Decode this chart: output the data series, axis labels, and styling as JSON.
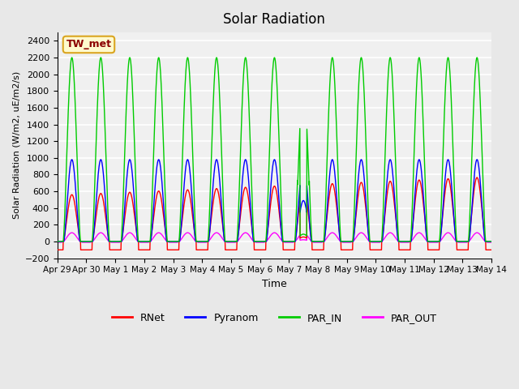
{
  "title": "Solar Radiation",
  "ylabel": "Solar Radiation (W/m2, uE/m2/s)",
  "xlabel": "Time",
  "annotation": "TW_met",
  "annotation_color": "#8B0000",
  "annotation_bg": "#FFFACD",
  "annotation_border": "#DAA520",
  "ylim": [
    -200,
    2500
  ],
  "yticks": [
    -200,
    0,
    200,
    400,
    600,
    800,
    1000,
    1200,
    1400,
    1600,
    1800,
    2000,
    2200,
    2400
  ],
  "xtick_labels": [
    "Apr 29",
    "Apr 30",
    "May 1",
    "May 2",
    "May 3",
    "May 4",
    "May 5",
    "May 6",
    "May 7",
    "May 8",
    "May 9",
    "May 10",
    "May 11",
    "May 12",
    "May 13",
    "May 14"
  ],
  "colors": {
    "RNet": "#FF0000",
    "Pyranom": "#0000FF",
    "PAR_IN": "#00CC00",
    "PAR_OUT": "#FF00FF"
  },
  "bg_color": "#E8E8E8",
  "plot_bg": "#F0F0F0",
  "grid_color": "#FFFFFF",
  "n_days": 15,
  "points_per_day": 144,
  "par_in_peak": 2200,
  "pyranom_peak": 980,
  "rnet_peak_early": 560,
  "rnet_peak_late": 780,
  "par_out_peak": 150,
  "rnet_night": -100,
  "cloudy_day_index": 8
}
